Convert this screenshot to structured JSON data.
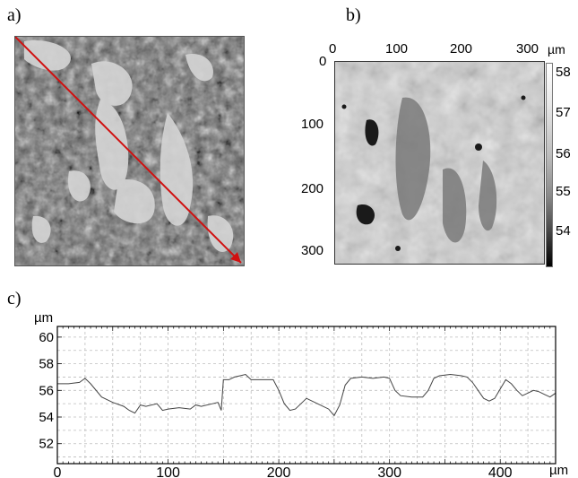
{
  "panels": {
    "a_label": "a)",
    "b_label": "b)",
    "c_label": "c)"
  },
  "panel_b": {
    "x_ticks": [
      "0",
      "100",
      "200",
      "300"
    ],
    "y_ticks": [
      "0",
      "100",
      "200",
      "300"
    ],
    "colorbar_unit": "µm",
    "colorbar_ticks": [
      "58",
      "57",
      "56",
      "55",
      "54"
    ],
    "colorbar_range": [
      53.5,
      58.2
    ]
  },
  "chart_data": {
    "type": "line",
    "title": "",
    "xlabel": "µm",
    "ylabel": "µm",
    "xlim": [
      0,
      450
    ],
    "ylim": [
      50.5,
      60.8
    ],
    "x_ticks": [
      0,
      100,
      200,
      300,
      400
    ],
    "y_ticks": [
      52,
      54,
      56,
      58,
      60
    ],
    "grid": true,
    "series": [
      {
        "points": [
          [
            0,
            56.5
          ],
          [
            10,
            56.5
          ],
          [
            20,
            56.6
          ],
          [
            25,
            56.9
          ],
          [
            30,
            56.5
          ],
          [
            40,
            55.5
          ],
          [
            50,
            55.1
          ],
          [
            60,
            54.8
          ],
          [
            65,
            54.5
          ],
          [
            70,
            54.3
          ],
          [
            75,
            54.9
          ],
          [
            80,
            54.8
          ],
          [
            90,
            55.0
          ],
          [
            95,
            54.5
          ],
          [
            100,
            54.6
          ],
          [
            110,
            54.7
          ],
          [
            120,
            54.6
          ],
          [
            125,
            54.9
          ],
          [
            130,
            54.8
          ],
          [
            140,
            55.0
          ],
          [
            145,
            55.1
          ],
          [
            148,
            54.5
          ],
          [
            150,
            56.8
          ],
          [
            155,
            56.8
          ],
          [
            160,
            57.0
          ],
          [
            165,
            57.1
          ],
          [
            170,
            57.2
          ],
          [
            175,
            56.8
          ],
          [
            185,
            56.8
          ],
          [
            195,
            56.8
          ],
          [
            200,
            56.0
          ],
          [
            205,
            55.0
          ],
          [
            210,
            54.5
          ],
          [
            215,
            54.6
          ],
          [
            220,
            55.0
          ],
          [
            225,
            55.4
          ],
          [
            235,
            55.0
          ],
          [
            245,
            54.6
          ],
          [
            250,
            54.1
          ],
          [
            255,
            54.9
          ],
          [
            260,
            56.4
          ],
          [
            265,
            56.9
          ],
          [
            275,
            57.0
          ],
          [
            285,
            56.9
          ],
          [
            295,
            57.0
          ],
          [
            300,
            56.9
          ],
          [
            305,
            56.0
          ],
          [
            310,
            55.6
          ],
          [
            320,
            55.5
          ],
          [
            330,
            55.5
          ],
          [
            335,
            56.0
          ],
          [
            340,
            56.9
          ],
          [
            345,
            57.1
          ],
          [
            355,
            57.2
          ],
          [
            365,
            57.1
          ],
          [
            370,
            57.0
          ],
          [
            375,
            56.6
          ],
          [
            380,
            56.0
          ],
          [
            385,
            55.4
          ],
          [
            390,
            55.2
          ],
          [
            395,
            55.4
          ],
          [
            400,
            56.1
          ],
          [
            405,
            56.8
          ],
          [
            410,
            56.5
          ],
          [
            415,
            56.0
          ],
          [
            420,
            55.6
          ],
          [
            425,
            55.8
          ],
          [
            430,
            56.0
          ],
          [
            435,
            55.9
          ],
          [
            440,
            55.7
          ],
          [
            445,
            55.5
          ],
          [
            450,
            55.8
          ]
        ]
      }
    ]
  }
}
